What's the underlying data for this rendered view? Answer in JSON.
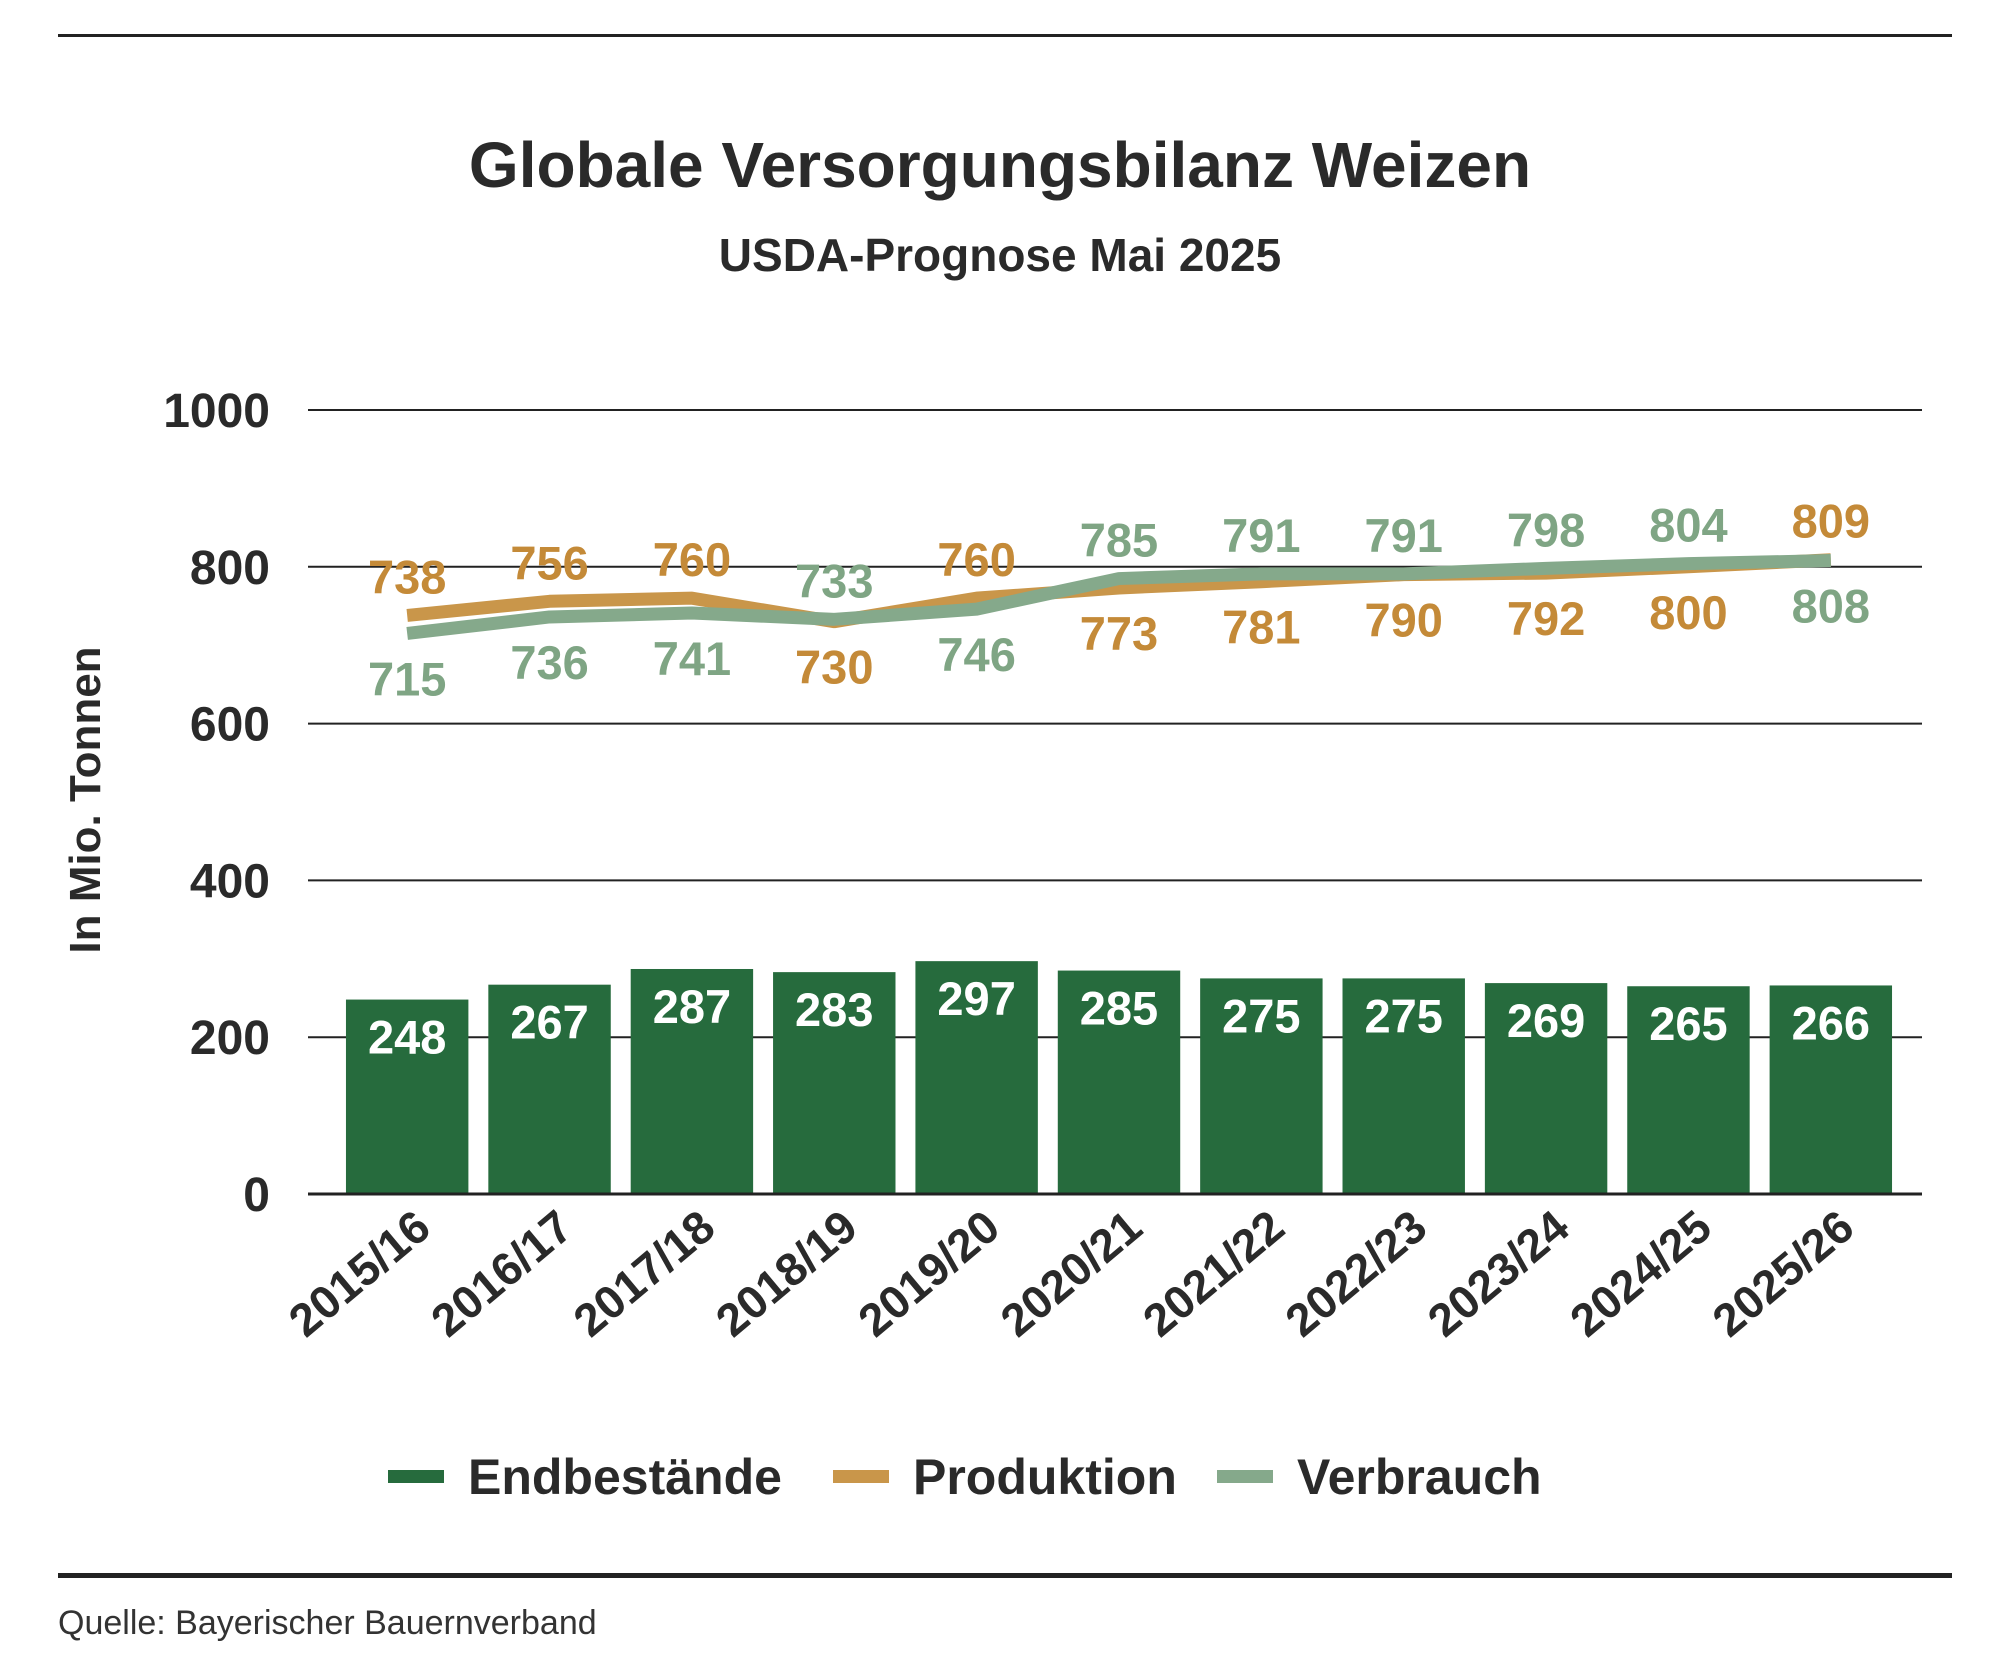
{
  "title": "Globale Versorgungsbilanz Weizen",
  "subtitle": "USDA-Prognose Mai 2025",
  "source": "Quelle: Bayerischer Bauernverband",
  "chart_data": {
    "type": "bar",
    "title": "Globale Versorgungsbilanz Weizen",
    "subtitle": "USDA-Prognose Mai 2025",
    "ylabel": "In Mio. Tonnen",
    "xlabel": "",
    "ylim": [
      0,
      1000
    ],
    "yticks": [
      0,
      200,
      400,
      600,
      800,
      1000
    ],
    "grid": true,
    "legend_position": "bottom",
    "categories": [
      "2015/16",
      "2016/17",
      "2017/18",
      "2018/19",
      "2019/20",
      "2020/21",
      "2021/22",
      "2022/23",
      "2023/24",
      "2024/25",
      "2025/26"
    ],
    "series": [
      {
        "name": "Endbestände",
        "kind": "bar",
        "color": "#266b3d",
        "label_color": "#ffffff",
        "values": [
          248,
          267,
          287,
          283,
          297,
          285,
          275,
          275,
          269,
          265,
          266
        ]
      },
      {
        "name": "Produktion",
        "kind": "line",
        "color": "#c9964a",
        "label_color": "#c48a38",
        "values": [
          738,
          756,
          760,
          730,
          760,
          773,
          781,
          790,
          792,
          800,
          809
        ]
      },
      {
        "name": "Verbrauch",
        "kind": "line",
        "color": "#85a98b",
        "label_color": "#7fa584",
        "values": [
          715,
          736,
          741,
          733,
          746,
          785,
          791,
          791,
          798,
          804,
          808
        ]
      }
    ]
  }
}
